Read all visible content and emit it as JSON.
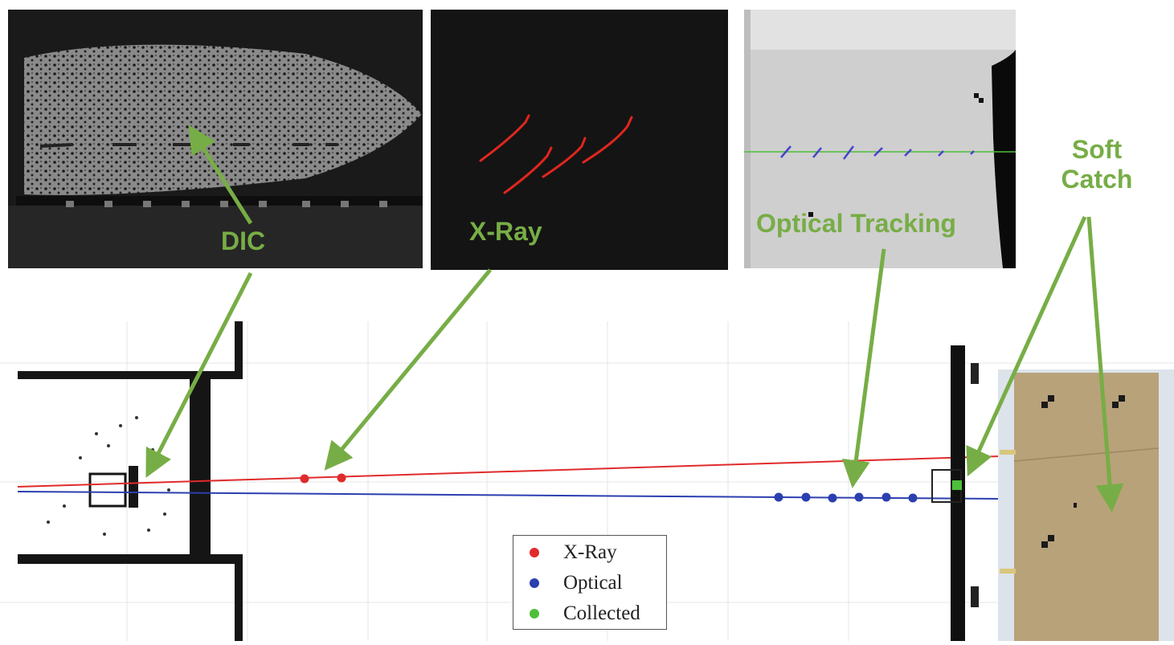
{
  "labels": {
    "dic": "DIC",
    "xray": "X-Ray",
    "optical_tracking": "Optical Tracking",
    "soft_catch_line1": "Soft",
    "soft_catch_line2": "Catch"
  },
  "legend": {
    "items": [
      {
        "label": "X-Ray",
        "color": "#e02b2b"
      },
      {
        "label": "Optical",
        "color": "#2b3fb0"
      },
      {
        "label": "Collected",
        "color": "#4dbf3a"
      }
    ]
  },
  "colors": {
    "annotation_green": "#77ad46",
    "xray_trace": "#e02b2b",
    "optical_trace": "#2b3fb0",
    "collected": "#4dbf3a",
    "cardboard": "#b8a27a"
  },
  "panels": {
    "dic": "dic-speckle-image",
    "xray": "xray-image",
    "optical": "optical-tracking-image"
  }
}
